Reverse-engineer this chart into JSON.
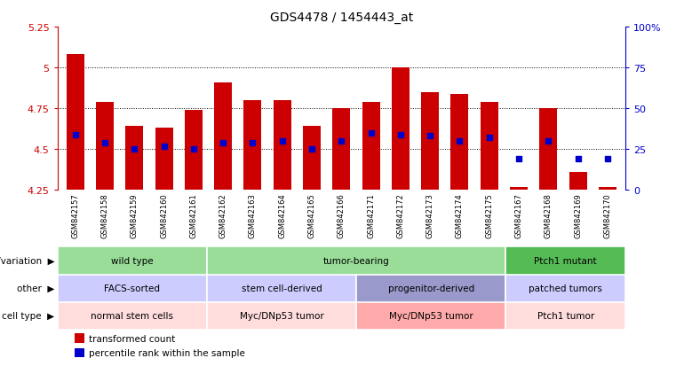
{
  "title": "GDS4478 / 1454443_at",
  "samples": [
    "GSM842157",
    "GSM842158",
    "GSM842159",
    "GSM842160",
    "GSM842161",
    "GSM842162",
    "GSM842163",
    "GSM842164",
    "GSM842165",
    "GSM842166",
    "GSM842171",
    "GSM842172",
    "GSM842173",
    "GSM842174",
    "GSM842175",
    "GSM842167",
    "GSM842168",
    "GSM842169",
    "GSM842170"
  ],
  "bar_values": [
    5.08,
    4.79,
    4.64,
    4.63,
    4.74,
    4.91,
    4.8,
    4.8,
    4.64,
    4.75,
    4.79,
    5.0,
    4.85,
    4.84,
    4.79,
    4.27,
    4.75,
    4.36,
    4.27
  ],
  "blue_dot_values": [
    4.59,
    4.54,
    4.5,
    4.52,
    4.5,
    4.54,
    4.54,
    4.55,
    4.5,
    4.55,
    4.6,
    4.59,
    4.58,
    4.55,
    4.57,
    4.44,
    4.55,
    4.44,
    4.44
  ],
  "ylim": [
    4.25,
    5.25
  ],
  "yticks": [
    4.25,
    4.5,
    4.75,
    5.0,
    5.25
  ],
  "ytick_labels": [
    "4.25",
    "4.5",
    "4.75",
    "5",
    "5.25"
  ],
  "right_yticks": [
    0,
    25,
    50,
    75,
    100
  ],
  "right_ytick_labels": [
    "0",
    "25",
    "50",
    "75",
    "100%"
  ],
  "bar_color": "#cc0000",
  "dot_color": "#0000cc",
  "left_axis_color": "#cc0000",
  "right_axis_color": "#0000cc",
  "genotype_groups": [
    {
      "label": "wild type",
      "start": 0,
      "end": 5,
      "color": "#99dd99"
    },
    {
      "label": "tumor-bearing",
      "start": 5,
      "end": 15,
      "color": "#99dd99"
    },
    {
      "label": "Ptch1 mutant",
      "start": 15,
      "end": 19,
      "color": "#55bb55"
    }
  ],
  "other_groups": [
    {
      "label": "FACS-sorted",
      "start": 0,
      "end": 5,
      "color": "#ccccff"
    },
    {
      "label": "stem cell-derived",
      "start": 5,
      "end": 10,
      "color": "#ccccff"
    },
    {
      "label": "progenitor-derived",
      "start": 10,
      "end": 15,
      "color": "#9999cc"
    },
    {
      "label": "patched tumors",
      "start": 15,
      "end": 19,
      "color": "#ccccff"
    }
  ],
  "celltype_groups": [
    {
      "label": "normal stem cells",
      "start": 0,
      "end": 5,
      "color": "#ffdddd"
    },
    {
      "label": "Myc/DNp53 tumor",
      "start": 5,
      "end": 10,
      "color": "#ffdddd"
    },
    {
      "label": "Myc/DNp53 tumor",
      "start": 10,
      "end": 15,
      "color": "#ffaaaa"
    },
    {
      "label": "Ptch1 tumor",
      "start": 15,
      "end": 19,
      "color": "#ffdddd"
    }
  ],
  "row_labels": [
    "genotype/variation",
    "other",
    "cell type"
  ],
  "legend_items": [
    {
      "color": "#cc0000",
      "label": "transformed count"
    },
    {
      "color": "#0000cc",
      "label": "percentile rank within the sample"
    }
  ]
}
